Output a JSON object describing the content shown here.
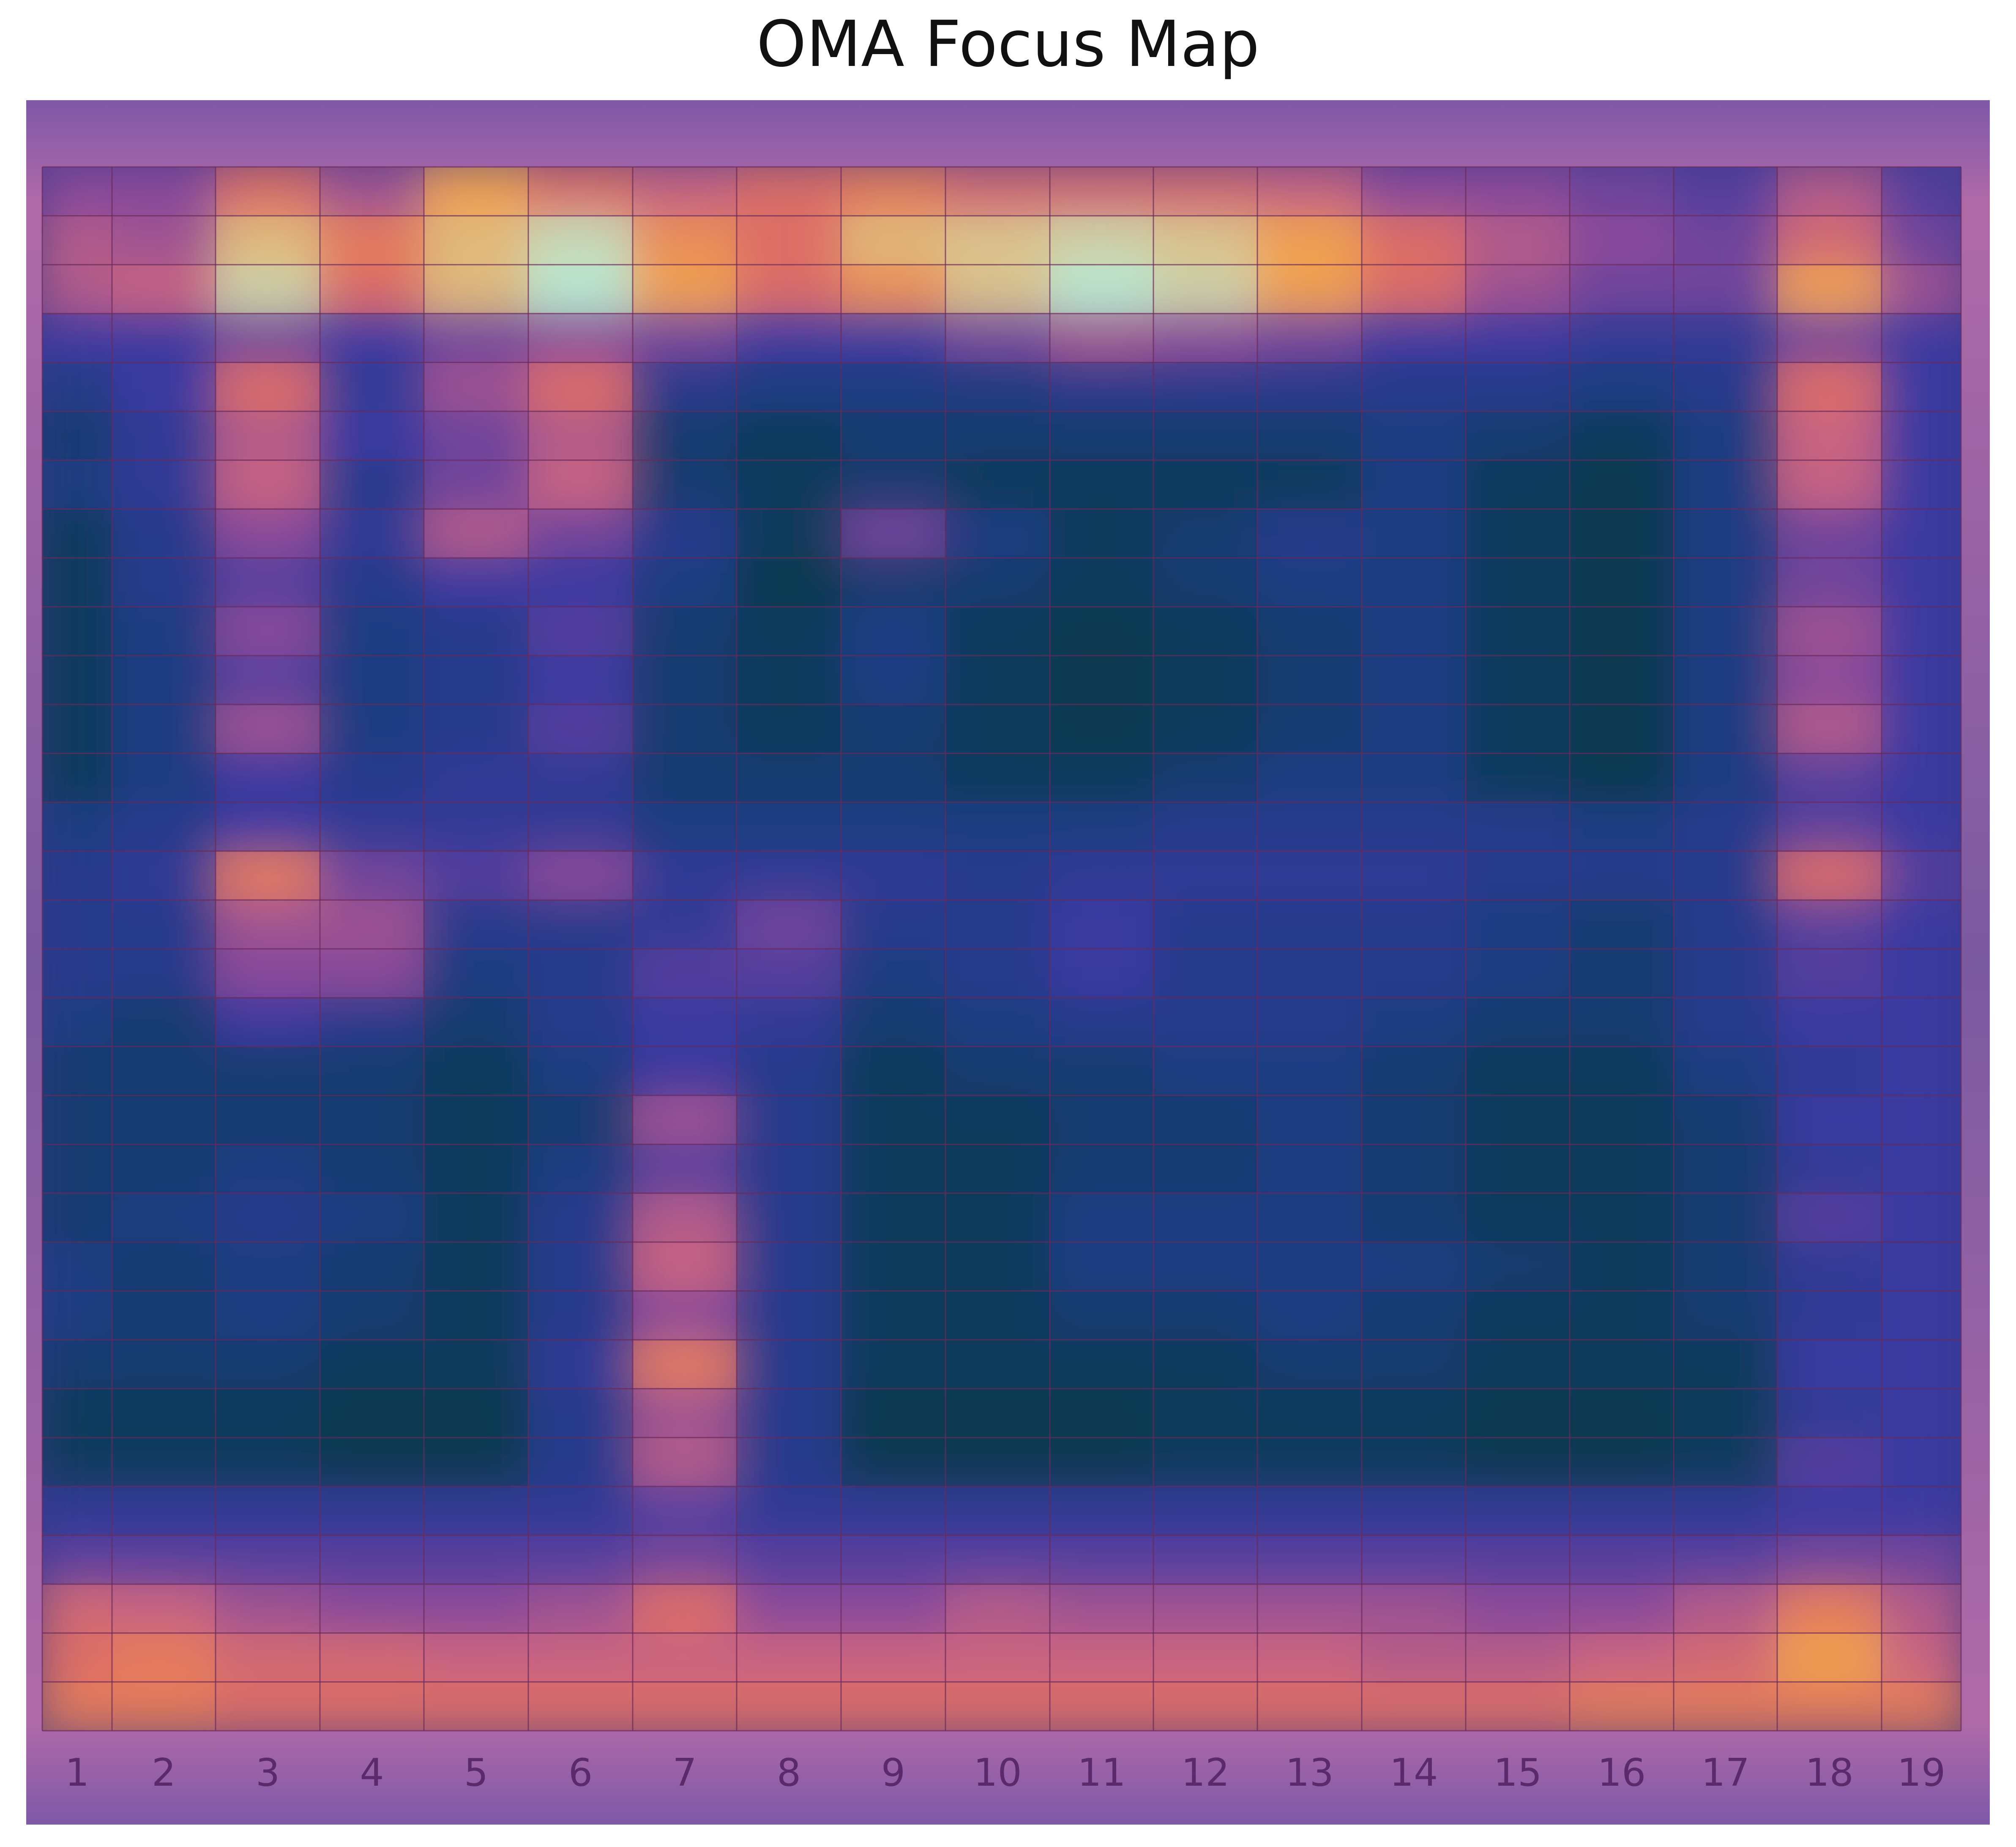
{
  "chart_data": {
    "type": "heatmap",
    "title": "OMA Focus Map",
    "xlabel": "",
    "ylabel": "",
    "columns": [
      "1",
      "2",
      "3",
      "4",
      "5",
      "6",
      "7",
      "8",
      "9",
      "10",
      "11",
      "12",
      "13",
      "14",
      "15",
      "16",
      "17",
      "18",
      "19"
    ],
    "row_count": 32,
    "values": [
      [
        0.45,
        0.45,
        0.7,
        0.5,
        0.85,
        0.7,
        0.6,
        0.7,
        0.75,
        0.65,
        0.65,
        0.65,
        0.6,
        0.45,
        0.45,
        0.4,
        0.35,
        0.55,
        0.35
      ],
      [
        0.55,
        0.5,
        0.9,
        0.75,
        0.9,
        0.97,
        0.8,
        0.7,
        0.9,
        0.92,
        0.95,
        0.92,
        0.85,
        0.7,
        0.55,
        0.45,
        0.4,
        0.65,
        0.4
      ],
      [
        0.55,
        0.6,
        0.95,
        0.7,
        0.9,
        1.0,
        0.85,
        0.7,
        0.8,
        0.92,
        1.0,
        0.95,
        0.85,
        0.7,
        0.5,
        0.4,
        0.4,
        0.85,
        0.5
      ],
      [
        0.3,
        0.3,
        0.4,
        0.3,
        0.4,
        0.45,
        0.4,
        0.3,
        0.3,
        0.4,
        0.5,
        0.45,
        0.4,
        0.3,
        0.3,
        0.25,
        0.25,
        0.4,
        0.3
      ],
      [
        0.18,
        0.3,
        0.7,
        0.25,
        0.5,
        0.7,
        0.2,
        0.15,
        0.15,
        0.15,
        0.2,
        0.2,
        0.2,
        0.2,
        0.2,
        0.15,
        0.2,
        0.7,
        0.3
      ],
      [
        0.1,
        0.25,
        0.55,
        0.3,
        0.4,
        0.55,
        0.1,
        0.05,
        0.1,
        0.1,
        0.1,
        0.1,
        0.1,
        0.15,
        0.1,
        0.05,
        0.15,
        0.6,
        0.3
      ],
      [
        0.15,
        0.25,
        0.6,
        0.2,
        0.4,
        0.6,
        0.1,
        0.05,
        0.1,
        0.05,
        0.05,
        0.05,
        0.05,
        0.15,
        0.05,
        0.02,
        0.15,
        0.6,
        0.3
      ],
      [
        0.05,
        0.2,
        0.45,
        0.25,
        0.55,
        0.4,
        0.2,
        0.05,
        0.4,
        0.15,
        0.05,
        0.1,
        0.2,
        0.15,
        0.05,
        0.02,
        0.15,
        0.4,
        0.3
      ],
      [
        0.05,
        0.2,
        0.35,
        0.2,
        0.3,
        0.3,
        0.15,
        0.02,
        0.1,
        0.1,
        0.05,
        0.1,
        0.15,
        0.15,
        0.05,
        0.02,
        0.15,
        0.4,
        0.3
      ],
      [
        0.05,
        0.15,
        0.45,
        0.15,
        0.2,
        0.35,
        0.1,
        0.05,
        0.15,
        0.05,
        0.02,
        0.05,
        0.1,
        0.15,
        0.05,
        0.02,
        0.15,
        0.5,
        0.3
      ],
      [
        0.05,
        0.15,
        0.35,
        0.15,
        0.2,
        0.3,
        0.1,
        0.05,
        0.15,
        0.05,
        0.02,
        0.05,
        0.1,
        0.15,
        0.05,
        0.02,
        0.15,
        0.45,
        0.3
      ],
      [
        0.05,
        0.15,
        0.5,
        0.15,
        0.2,
        0.35,
        0.1,
        0.05,
        0.1,
        0.05,
        0.02,
        0.05,
        0.1,
        0.15,
        0.05,
        0.02,
        0.15,
        0.55,
        0.3
      ],
      [
        0.05,
        0.15,
        0.3,
        0.2,
        0.25,
        0.25,
        0.1,
        0.1,
        0.1,
        0.05,
        0.05,
        0.1,
        0.15,
        0.15,
        0.05,
        0.02,
        0.15,
        0.35,
        0.3
      ],
      [
        0.15,
        0.2,
        0.3,
        0.25,
        0.25,
        0.25,
        0.15,
        0.15,
        0.15,
        0.15,
        0.15,
        0.2,
        0.2,
        0.2,
        0.2,
        0.15,
        0.2,
        0.35,
        0.3
      ],
      [
        0.2,
        0.25,
        0.75,
        0.4,
        0.35,
        0.45,
        0.25,
        0.25,
        0.25,
        0.2,
        0.25,
        0.25,
        0.25,
        0.25,
        0.2,
        0.2,
        0.2,
        0.7,
        0.35
      ],
      [
        0.2,
        0.2,
        0.5,
        0.5,
        0.2,
        0.2,
        0.25,
        0.4,
        0.2,
        0.2,
        0.3,
        0.2,
        0.2,
        0.2,
        0.15,
        0.1,
        0.2,
        0.35,
        0.3
      ],
      [
        0.2,
        0.2,
        0.45,
        0.45,
        0.15,
        0.2,
        0.35,
        0.35,
        0.15,
        0.2,
        0.3,
        0.2,
        0.2,
        0.2,
        0.15,
        0.1,
        0.2,
        0.35,
        0.3
      ],
      [
        0.15,
        0.1,
        0.3,
        0.2,
        0.1,
        0.2,
        0.3,
        0.25,
        0.1,
        0.15,
        0.2,
        0.2,
        0.2,
        0.15,
        0.1,
        0.1,
        0.2,
        0.3,
        0.3
      ],
      [
        0.1,
        0.1,
        0.1,
        0.1,
        0.05,
        0.15,
        0.3,
        0.2,
        0.05,
        0.1,
        0.1,
        0.15,
        0.15,
        0.1,
        0.05,
        0.05,
        0.15,
        0.25,
        0.3
      ],
      [
        0.1,
        0.1,
        0.1,
        0.1,
        0.05,
        0.1,
        0.5,
        0.2,
        0.05,
        0.05,
        0.1,
        0.1,
        0.15,
        0.1,
        0.05,
        0.05,
        0.1,
        0.3,
        0.3
      ],
      [
        0.1,
        0.1,
        0.15,
        0.1,
        0.05,
        0.15,
        0.35,
        0.2,
        0.05,
        0.05,
        0.1,
        0.1,
        0.15,
        0.1,
        0.05,
        0.05,
        0.1,
        0.25,
        0.3
      ],
      [
        0.1,
        0.15,
        0.2,
        0.15,
        0.05,
        0.2,
        0.55,
        0.2,
        0.05,
        0.05,
        0.15,
        0.15,
        0.15,
        0.1,
        0.05,
        0.05,
        0.1,
        0.35,
        0.3
      ],
      [
        0.15,
        0.1,
        0.15,
        0.1,
        0.05,
        0.2,
        0.6,
        0.2,
        0.05,
        0.05,
        0.15,
        0.15,
        0.15,
        0.15,
        0.1,
        0.05,
        0.1,
        0.25,
        0.3
      ],
      [
        0.15,
        0.1,
        0.15,
        0.1,
        0.05,
        0.2,
        0.45,
        0.2,
        0.05,
        0.05,
        0.1,
        0.1,
        0.15,
        0.1,
        0.05,
        0.05,
        0.1,
        0.25,
        0.3
      ],
      [
        0.1,
        0.1,
        0.1,
        0.05,
        0.05,
        0.25,
        0.75,
        0.2,
        0.05,
        0.05,
        0.05,
        0.05,
        0.1,
        0.1,
        0.05,
        0.05,
        0.05,
        0.3,
        0.3
      ],
      [
        0.05,
        0.05,
        0.05,
        0.02,
        0.02,
        0.2,
        0.5,
        0.2,
        0.02,
        0.02,
        0.02,
        0.05,
        0.05,
        0.05,
        0.02,
        0.02,
        0.05,
        0.25,
        0.3
      ],
      [
        0.05,
        0.05,
        0.05,
        0.02,
        0.02,
        0.2,
        0.55,
        0.2,
        0.02,
        0.02,
        0.02,
        0.05,
        0.05,
        0.05,
        0.02,
        0.02,
        0.05,
        0.35,
        0.3
      ],
      [
        0.25,
        0.25,
        0.25,
        0.25,
        0.25,
        0.25,
        0.35,
        0.25,
        0.25,
        0.25,
        0.25,
        0.25,
        0.25,
        0.25,
        0.25,
        0.25,
        0.25,
        0.3,
        0.3
      ],
      [
        0.35,
        0.35,
        0.35,
        0.35,
        0.35,
        0.35,
        0.4,
        0.35,
        0.35,
        0.35,
        0.35,
        0.35,
        0.35,
        0.35,
        0.35,
        0.35,
        0.35,
        0.4,
        0.4
      ],
      [
        0.65,
        0.6,
        0.5,
        0.45,
        0.45,
        0.5,
        0.7,
        0.45,
        0.45,
        0.55,
        0.5,
        0.5,
        0.5,
        0.5,
        0.45,
        0.45,
        0.55,
        0.75,
        0.55
      ],
      [
        0.7,
        0.75,
        0.65,
        0.65,
        0.6,
        0.6,
        0.6,
        0.6,
        0.6,
        0.6,
        0.6,
        0.6,
        0.6,
        0.55,
        0.55,
        0.6,
        0.65,
        0.85,
        0.6
      ],
      [
        0.75,
        0.75,
        0.7,
        0.7,
        0.7,
        0.7,
        0.7,
        0.7,
        0.7,
        0.7,
        0.7,
        0.7,
        0.7,
        0.7,
        0.7,
        0.75,
        0.75,
        0.75,
        0.75
      ]
    ],
    "colors": {
      "frame": "#8a5aa6",
      "frame_edge": "#b06aa0",
      "grid_line": "#6a2a5a",
      "tick_text": "#5a2a6a",
      "low": "#0a3a4a",
      "mid_low": "#3a3aa0",
      "mid": "#8a4a9a",
      "mid_high": "#e07060",
      "high": "#f0a050",
      "peak": "#b8e8d0"
    },
    "grid": true,
    "legend": "none"
  }
}
